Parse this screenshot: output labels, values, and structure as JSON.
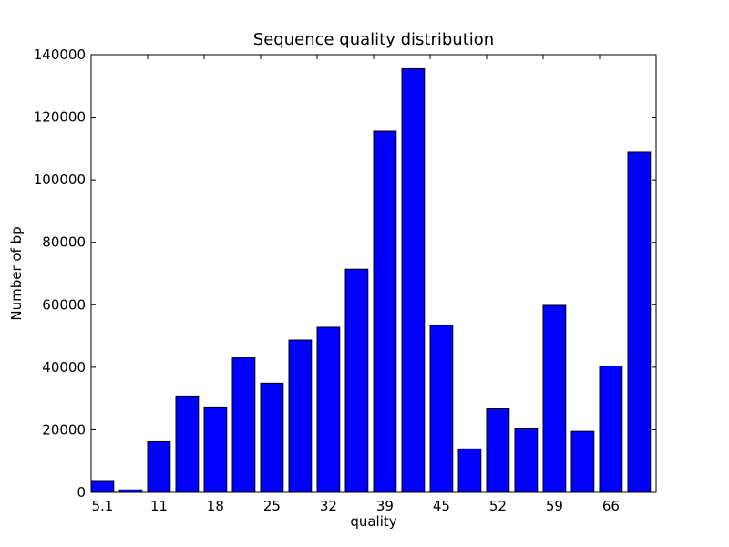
{
  "chart_data": {
    "type": "bar",
    "title": "Sequence quality distribution",
    "xlabel": "quality",
    "ylabel": "Number of bp",
    "ylim": [
      0,
      140000
    ],
    "yticks": [
      0,
      20000,
      40000,
      60000,
      80000,
      100000,
      120000,
      140000
    ],
    "xtick_labels": [
      "5.1",
      "11",
      "18",
      "25",
      "32",
      "39",
      "45",
      "52",
      "59",
      "66"
    ],
    "values": [
      3500,
      800,
      16200,
      30800,
      27300,
      43000,
      34900,
      48700,
      52800,
      71400,
      115500,
      135500,
      53400,
      13900,
      26700,
      20300,
      59800,
      19500,
      40400,
      108800
    ],
    "bar_color": "#0000ff",
    "grid": false
  }
}
